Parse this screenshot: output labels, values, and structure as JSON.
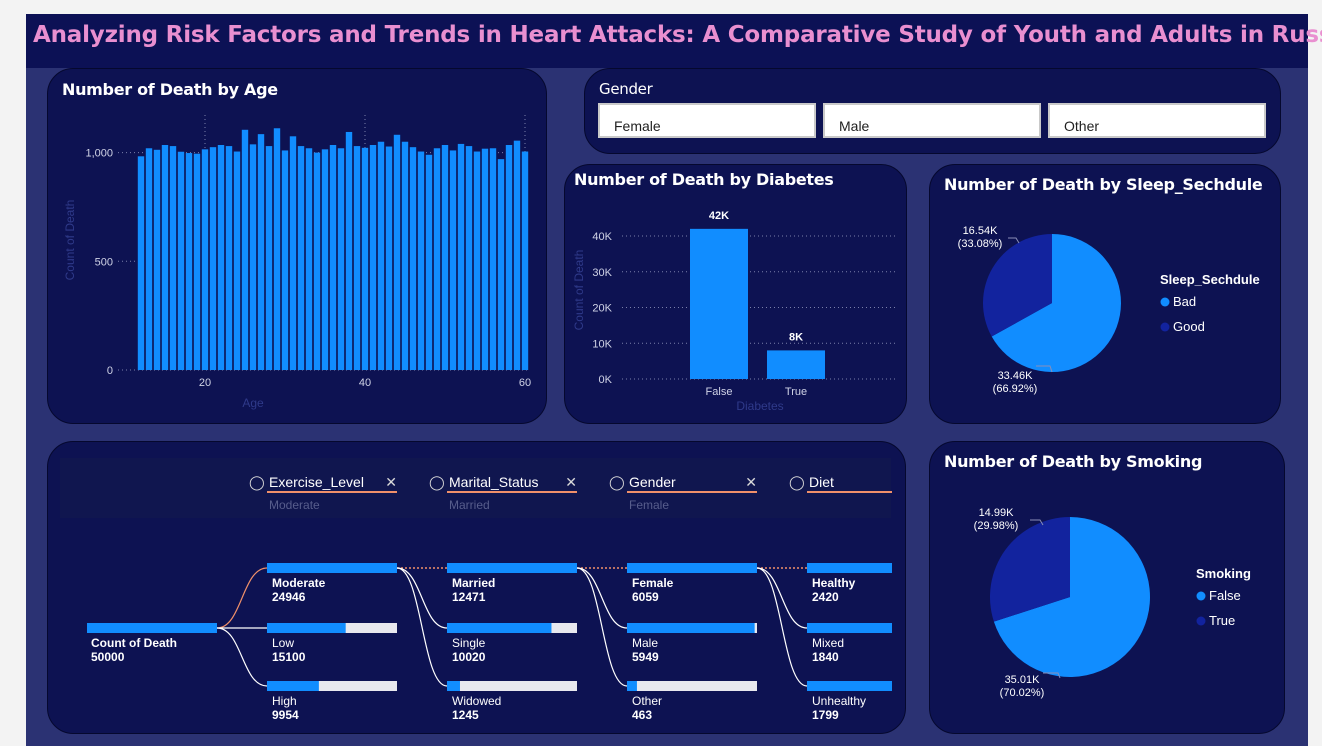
{
  "header": {
    "title": "Analyzing Risk Factors and Trends in Heart Attacks: A Comparative Study of Youth and Adults in Russia"
  },
  "colors": {
    "accent": "#118dff",
    "dark_series": "#12239e",
    "title": "#e98fd0",
    "panel": "#0d1252",
    "background": "#2b3273",
    "highlight": "#f0906a"
  },
  "gender_slicer": {
    "title": "Gender",
    "options": [
      "Female",
      "Male",
      "Other"
    ]
  },
  "charts": {
    "age": {
      "title": "Number of Death by Age"
    },
    "diabetes": {
      "title": "Number of Death by Diabetes"
    },
    "sleep": {
      "title": "Number of Death by Sleep_Sechdule"
    },
    "smoking": {
      "title": "Number of Death by Smoking"
    }
  },
  "chart_data": [
    {
      "id": "age",
      "type": "bar",
      "title": "Number of Death by Age",
      "xlabel": "Age",
      "ylabel": "Count of Death",
      "x": [
        12,
        13,
        14,
        15,
        16,
        17,
        18,
        19,
        20,
        21,
        22,
        23,
        24,
        25,
        26,
        27,
        28,
        29,
        30,
        31,
        32,
        33,
        34,
        35,
        36,
        37,
        38,
        39,
        40,
        41,
        42,
        43,
        44,
        45,
        46,
        47,
        48,
        49,
        50,
        51,
        52,
        53,
        54,
        55,
        56,
        57,
        58,
        59,
        60
      ],
      "values": [
        983,
        1020,
        1013,
        1035,
        1030,
        1004,
        998,
        995,
        1015,
        1025,
        1035,
        1030,
        1005,
        1105,
        1038,
        1085,
        1030,
        1112,
        1010,
        1075,
        1030,
        1020,
        1000,
        1015,
        1035,
        1020,
        1095,
        1030,
        1022,
        1035,
        1050,
        1028,
        1082,
        1050,
        1025,
        1005,
        990,
        1020,
        1035,
        1010,
        1040,
        1030,
        1005,
        1018,
        1020,
        970,
        1035,
        1055,
        1005
      ],
      "xticks": [
        "20",
        "40",
        "60"
      ],
      "yticks": [
        "0",
        "500",
        "1,000"
      ],
      "ylim": [
        0,
        1150
      ],
      "grid": true
    },
    {
      "id": "diabetes",
      "type": "bar",
      "title": "Number of Death by Diabetes",
      "categories": [
        "False",
        "True"
      ],
      "values": [
        42000,
        8000
      ],
      "data_labels": [
        "42K",
        "8K"
      ],
      "xlabel": "Diabetes",
      "ylabel": "Count of Death",
      "yticks": [
        "0K",
        "10K",
        "20K",
        "30K",
        "40K"
      ],
      "ylim": [
        0,
        42000
      ]
    },
    {
      "id": "sleep",
      "type": "pie",
      "title": "Number of Death by Sleep_Sechdule",
      "legend_title": "Sleep_Sechdule",
      "legend_position": "right",
      "slices": [
        {
          "label": "Bad",
          "value": 33460,
          "display": "33.46K",
          "pct": "(66.92%)",
          "color": "#118dff"
        },
        {
          "label": "Good",
          "value": 16540,
          "display": "16.54K",
          "pct": "(33.08%)",
          "color": "#12239e"
        }
      ]
    },
    {
      "id": "smoking",
      "type": "pie",
      "title": "Number of Death by Smoking",
      "legend_title": "Smoking",
      "legend_position": "right",
      "slices": [
        {
          "label": "False",
          "value": 35010,
          "display": "35.01K",
          "pct": "(70.02%)",
          "color": "#118dff"
        },
        {
          "label": "True",
          "value": 14990,
          "display": "14.99K",
          "pct": "(29.98%)",
          "color": "#12239e"
        }
      ]
    }
  ],
  "decomposition_tree": {
    "root": {
      "label": "Count of Death",
      "value": "50000"
    },
    "filters": [
      {
        "field": "Exercise_Level",
        "selected": "Moderate"
      },
      {
        "field": "Marital_Status",
        "selected": "Married"
      },
      {
        "field": "Gender",
        "selected": "Female"
      },
      {
        "field": "Diet",
        "selected": ""
      }
    ],
    "levels": [
      [
        {
          "label": "Moderate",
          "value": "24946",
          "num": 24946
        },
        {
          "label": "Low",
          "value": "15100",
          "num": 15100
        },
        {
          "label": "High",
          "value": "9954",
          "num": 9954
        }
      ],
      [
        {
          "label": "Married",
          "value": "12471",
          "num": 12471
        },
        {
          "label": "Single",
          "value": "10020",
          "num": 10020
        },
        {
          "label": "Widowed",
          "value": "1245",
          "num": 1245
        }
      ],
      [
        {
          "label": "Female",
          "value": "6059",
          "num": 6059
        },
        {
          "label": "Male",
          "value": "5949",
          "num": 5949
        },
        {
          "label": "Other",
          "value": "463",
          "num": 463
        }
      ],
      [
        {
          "label": "Healthy",
          "value": "2420",
          "num": 2420
        },
        {
          "label": "Mixed",
          "value": "1840",
          "num": 1840
        },
        {
          "label": "Unhealthy",
          "value": "1799",
          "num": 1799
        }
      ]
    ]
  }
}
